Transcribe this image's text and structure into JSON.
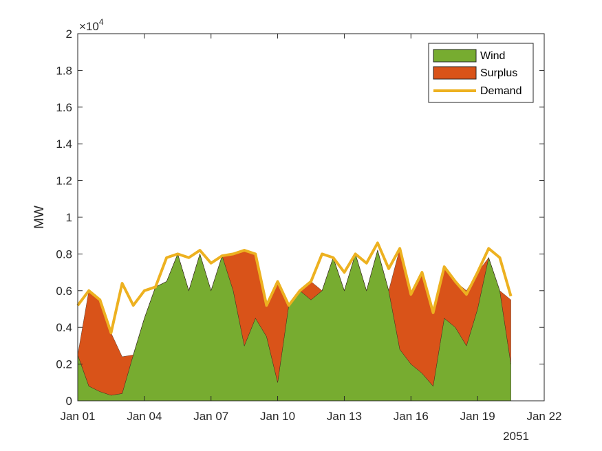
{
  "chart_data": {
    "type": "area",
    "title": "",
    "xlabel": "",
    "ylabel": "MW",
    "y_exponent_label": "×10",
    "y_exponent": "4",
    "year_label": "2051",
    "xlim": [
      "Jan 01",
      "Jan 22"
    ],
    "ylim": [
      0,
      2
    ],
    "x_ticks": [
      "Jan 01",
      "Jan 04",
      "Jan 07",
      "Jan 10",
      "Jan 13",
      "Jan 16",
      "Jan 19",
      "Jan 22"
    ],
    "y_ticks": [
      "0",
      "0.2",
      "0.4",
      "0.6",
      "0.8",
      "1",
      "1.2",
      "1.4",
      "1.6",
      "1.8",
      "2"
    ],
    "grid": false,
    "legend_position": "top-right",
    "legend": [
      "Wind",
      "Surplus",
      "Demand"
    ],
    "colors": {
      "wind": "#77ac30",
      "surplus": "#d95319",
      "demand": "#edb120"
    },
    "x": [
      "Jan 01",
      "Jan 01 12:00",
      "Jan 02",
      "Jan 02 12:00",
      "Jan 03",
      "Jan 03 12:00",
      "Jan 04",
      "Jan 04 12:00",
      "Jan 05",
      "Jan 05 12:00",
      "Jan 06",
      "Jan 06 12:00",
      "Jan 07",
      "Jan 07 12:00",
      "Jan 08",
      "Jan 08 12:00",
      "Jan 09",
      "Jan 09 12:00",
      "Jan 10",
      "Jan 10 12:00",
      "Jan 11",
      "Jan 11 12:00",
      "Jan 12",
      "Jan 12 12:00",
      "Jan 13",
      "Jan 13 12:00",
      "Jan 14",
      "Jan 14 12:00",
      "Jan 15",
      "Jan 15 12:00",
      "Jan 16",
      "Jan 16 12:00",
      "Jan 17",
      "Jan 17 12:00",
      "Jan 18",
      "Jan 18 12:00",
      "Jan 19",
      "Jan 19 12:00",
      "Jan 20",
      "Jan 20 12:00"
    ],
    "series": [
      {
        "name": "Wind",
        "values": [
          0.25,
          0.08,
          0.05,
          0.03,
          0.04,
          0.25,
          0.45,
          0.62,
          0.65,
          0.8,
          0.6,
          0.8,
          0.6,
          0.79,
          0.6,
          0.3,
          0.45,
          0.35,
          0.1,
          0.52,
          0.6,
          0.55,
          0.6,
          0.78,
          0.6,
          0.8,
          0.6,
          0.82,
          0.6,
          0.28,
          0.2,
          0.15,
          0.08,
          0.45,
          0.4,
          0.3,
          0.5,
          0.78,
          0.6,
          0.2
        ]
      },
      {
        "name": "Surplus",
        "values": [
          0.0,
          0.52,
          0.5,
          0.34,
          0.2,
          0.0,
          0.0,
          0.0,
          0.0,
          0.0,
          0.0,
          0.0,
          0.0,
          0.0,
          0.2,
          0.52,
          0.35,
          0.17,
          0.55,
          0.0,
          0.0,
          0.1,
          0.0,
          0.0,
          0.0,
          0.0,
          0.0,
          0.0,
          0.0,
          0.55,
          0.38,
          0.55,
          0.4,
          0.28,
          0.25,
          0.3,
          0.2,
          0.0,
          0.0,
          0.35
        ]
      },
      {
        "name": "Demand",
        "values": [
          0.52,
          0.6,
          0.55,
          0.37,
          0.64,
          0.52,
          0.6,
          0.62,
          0.78,
          0.8,
          0.78,
          0.82,
          0.75,
          0.79,
          0.8,
          0.82,
          0.8,
          0.52,
          0.65,
          0.52,
          0.6,
          0.65,
          0.8,
          0.78,
          0.7,
          0.8,
          0.75,
          0.86,
          0.72,
          0.83,
          0.58,
          0.7,
          0.48,
          0.73,
          0.65,
          0.58,
          0.7,
          0.83,
          0.78,
          0.57
        ]
      }
    ]
  }
}
